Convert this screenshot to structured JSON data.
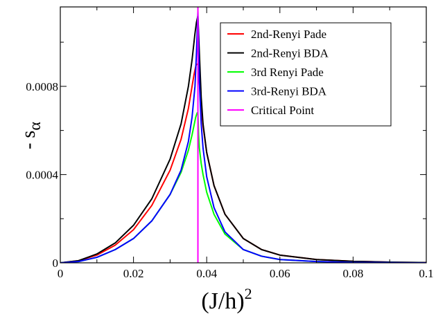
{
  "chart_data": {
    "type": "line",
    "title": "",
    "xlabel": "(J/h)",
    "xlabel_superscript": "2",
    "ylabel": "- s",
    "ylabel_subscript": "α",
    "xlim": [
      0,
      0.1
    ],
    "ylim": [
      0,
      0.00116
    ],
    "x_ticks": [
      0,
      0.02,
      0.04,
      0.06,
      0.08,
      0.1
    ],
    "x_tick_labels": [
      "0",
      "0.02",
      "0.04",
      "0.06",
      "0.08",
      "0.1"
    ],
    "y_ticks": [
      0,
      0.0004,
      0.0008
    ],
    "y_tick_labels": [
      "0",
      "0.0004",
      "0.0008"
    ],
    "grid": false,
    "legend_position": "top-right",
    "critical_point": 0.0376,
    "series": [
      {
        "name": "2nd-Renyi Pade",
        "color": "#ff0000",
        "x": [
          0,
          0.005,
          0.01,
          0.015,
          0.02,
          0.025,
          0.03,
          0.033,
          0.035,
          0.036,
          0.0365,
          0.037,
          0.0372,
          0.0376,
          0.038,
          0.0385,
          0.039,
          0.04,
          0.042,
          0.045,
          0.05,
          0.055,
          0.06,
          0.07,
          0.08,
          0.09,
          0.1
        ],
        "values": [
          0,
          1e-05,
          3.5e-05,
          8e-05,
          0.00015,
          0.00026,
          0.00042,
          0.00056,
          0.0007,
          0.0008,
          0.00085,
          0.00089,
          0.0009,
          0.0009,
          0.00082,
          0.00071,
          0.00062,
          0.0005,
          0.00035,
          0.00022,
          0.00011,
          6e-05,
          3.5e-05,
          1.5e-05,
          7e-06,
          3e-06,
          1e-06
        ]
      },
      {
        "name": "2nd-Renyi BDA",
        "color": "#000000",
        "x": [
          0,
          0.005,
          0.01,
          0.015,
          0.02,
          0.025,
          0.03,
          0.033,
          0.035,
          0.036,
          0.0368,
          0.0372,
          0.0376,
          0.038,
          0.0385,
          0.039,
          0.04,
          0.042,
          0.045,
          0.05,
          0.055,
          0.06,
          0.07,
          0.08,
          0.09,
          0.1
        ],
        "values": [
          0,
          1e-05,
          4e-05,
          9e-05,
          0.00017,
          0.00029,
          0.00047,
          0.00063,
          0.0008,
          0.00092,
          0.00104,
          0.00109,
          0.00112,
          0.00095,
          0.00075,
          0.00063,
          0.0005,
          0.00035,
          0.00022,
          0.00011,
          6e-05,
          3.5e-05,
          1.5e-05,
          7e-06,
          3e-06,
          1e-06
        ]
      },
      {
        "name": "3rd Renyi Pade",
        "color": "#00ff00",
        "x": [
          0,
          0.005,
          0.01,
          0.015,
          0.02,
          0.025,
          0.03,
          0.033,
          0.035,
          0.036,
          0.037,
          0.0374,
          0.0376,
          0.0378,
          0.038,
          0.0385,
          0.039,
          0.04,
          0.042,
          0.045,
          0.05,
          0.055,
          0.06,
          0.07,
          0.08,
          0.09,
          0.1
        ],
        "values": [
          0,
          6e-06,
          2.5e-05,
          6e-05,
          0.00011,
          0.00019,
          0.00031,
          0.00041,
          0.00051,
          0.00058,
          0.00066,
          0.00068,
          0.00068,
          0.00058,
          0.00052,
          0.00045,
          0.0004,
          0.00032,
          0.00022,
          0.00013,
          6e-05,
          3e-05,
          1.5e-05,
          6e-06,
          2e-06,
          1e-06,
          0
        ]
      },
      {
        "name": "3rd-Renyi BDA",
        "color": "#0000ff",
        "x": [
          0,
          0.005,
          0.01,
          0.015,
          0.02,
          0.025,
          0.03,
          0.033,
          0.035,
          0.036,
          0.0368,
          0.0372,
          0.0376,
          0.038,
          0.0385,
          0.039,
          0.04,
          0.042,
          0.045,
          0.05,
          0.055,
          0.06,
          0.07,
          0.08,
          0.09,
          0.1
        ],
        "values": [
          0,
          6e-06,
          2.5e-05,
          6e-05,
          0.00011,
          0.00019,
          0.00031,
          0.00042,
          0.00055,
          0.00066,
          0.0008,
          0.00095,
          0.00114,
          0.00082,
          0.00063,
          0.00052,
          0.00039,
          0.00025,
          0.00014,
          6e-05,
          3e-05,
          1.5e-05,
          6e-06,
          2e-06,
          1e-06,
          0
        ]
      }
    ],
    "reference_lines": [
      {
        "name": "Critical Point",
        "color": "#ff00ff",
        "x": 0.0376
      }
    ]
  }
}
